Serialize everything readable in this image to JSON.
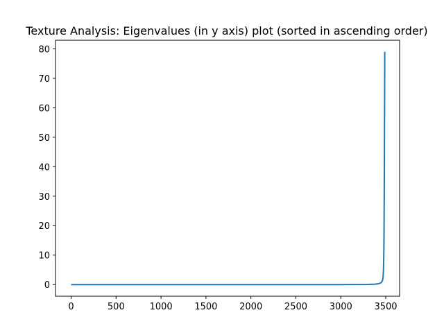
{
  "chart_data": {
    "type": "line",
    "title": "Texture Analysis: Eigenvalues (in y axis) plot (sorted in ascending order)",
    "xlabel": "",
    "ylabel": "",
    "xlim": [
      -174,
      3654
    ],
    "ylim": [
      -3.95,
      82.9
    ],
    "x_ticks": [
      0,
      500,
      1000,
      1500,
      2000,
      2500,
      3000,
      3500
    ],
    "y_ticks": [
      0,
      10,
      20,
      30,
      40,
      50,
      60,
      70,
      80
    ],
    "grid": false,
    "legend": "none",
    "colors": {
      "line": "#1f77b4",
      "axes": "#000000",
      "background": "#ffffff"
    },
    "series": [
      {
        "x": [
          0,
          500,
          1000,
          1500,
          2000,
          2500,
          3000,
          3300,
          3380,
          3420,
          3440,
          3455,
          3465,
          3470,
          3474,
          3477,
          3479,
          3481,
          3483,
          3485,
          3487,
          3489
        ],
        "y": [
          0,
          0,
          0,
          0,
          0,
          0,
          0,
          0.05,
          0.15,
          0.3,
          0.5,
          0.9,
          1.5,
          2.5,
          4.5,
          8,
          12,
          18,
          30,
          45,
          62,
          79
        ]
      }
    ]
  }
}
